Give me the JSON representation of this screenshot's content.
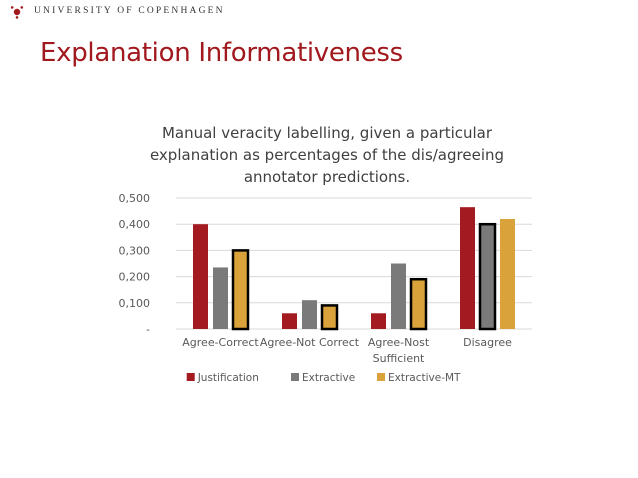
{
  "header": {
    "university": "UNIVERSITY OF COPENHAGEN",
    "logo_icon": "ku-seal-icon"
  },
  "slide": {
    "title": "Explanation Informativeness"
  },
  "colors": {
    "brand_red": "#a1191e",
    "justification": "#a31a21",
    "extractive": "#7a7a7a",
    "extractive_mt": "#d9a23a"
  },
  "chart_data": {
    "type": "bar",
    "title_lines": [
      "Manual veracity labelling, given a particular",
      "explanation as percentages of the dis/agreeing",
      "annotator predictions."
    ],
    "categories": [
      [
        "Agree-Correct"
      ],
      [
        "Agree-Not Correct"
      ],
      [
        "Agree-Nost",
        "Sufficient"
      ],
      [
        "Disagree"
      ]
    ],
    "series": [
      {
        "name": "Justification",
        "values": [
          0.4,
          0.06,
          0.06,
          0.465
        ],
        "highlight": [
          false,
          false,
          false,
          false
        ]
      },
      {
        "name": "Extractive",
        "values": [
          0.235,
          0.11,
          0.25,
          0.4
        ],
        "highlight": [
          false,
          false,
          false,
          true
        ]
      },
      {
        "name": "Extractive-MT",
        "values": [
          0.3,
          0.09,
          0.19,
          0.42
        ],
        "highlight": [
          true,
          true,
          true,
          false
        ]
      }
    ],
    "ylim": [
      0,
      0.5
    ],
    "yticks": [
      0,
      0.1,
      0.2,
      0.3,
      0.4,
      0.5
    ],
    "ytick_labels": [
      "-",
      "0,100",
      "0,200",
      "0,300",
      "0,400",
      "0,500"
    ],
    "grid": true,
    "legend_position": "bottom"
  }
}
